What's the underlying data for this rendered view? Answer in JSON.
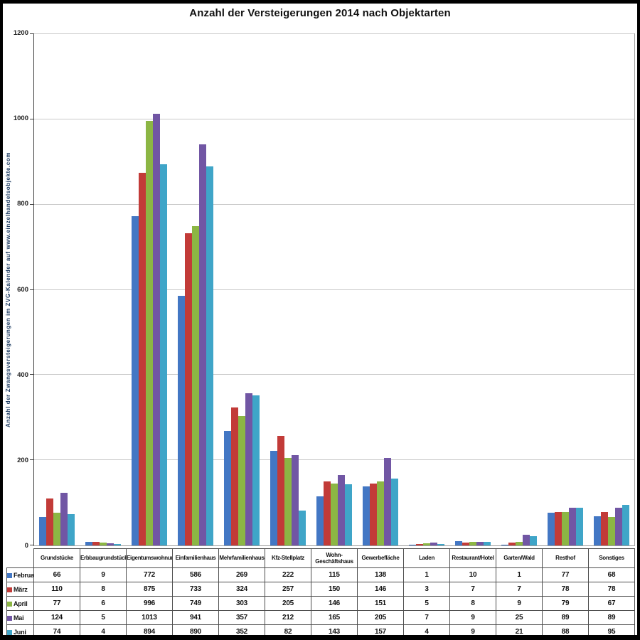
{
  "title": "Anzahl der Versteigerungen 2014 nach Objektarten",
  "chart_data": {
    "type": "bar",
    "title": "Anzahl der Versteigerungen 2014 nach Objektarten",
    "ylabel": "Anzahl der Zwangsversteigerungen im ZVG-Kalender auf www.einzelhandelsobjekte.com",
    "xlabel": "",
    "ylim": [
      0,
      1200
    ],
    "yticks": [
      0,
      200,
      400,
      600,
      800,
      1000,
      1200
    ],
    "grid": true,
    "legend_position": "table-row-headers",
    "categories": [
      "Grundstücke",
      "Erbbaugrundstück",
      "Eigentumswohnung",
      "Einfamilienhaus",
      "Mehrfamilienhaus",
      "Kfz-Stellplatz",
      "Wohn-Geschäftshaus",
      "Gewerbefläche",
      "Laden",
      "Restaurant/Hotel",
      "Garten/Wald",
      "Resthof",
      "Sonstiges"
    ],
    "series": [
      {
        "name": "Februar",
        "color": "#4377C4",
        "values": [
          66,
          9,
          772,
          586,
          269,
          222,
          115,
          138,
          1,
          10,
          1,
          77,
          68
        ]
      },
      {
        "name": "März",
        "color": "#C23B38",
        "values": [
          110,
          8,
          875,
          733,
          324,
          257,
          150,
          146,
          3,
          7,
          7,
          78,
          78
        ]
      },
      {
        "name": "April",
        "color": "#8CB644",
        "values": [
          77,
          6,
          996,
          749,
          303,
          205,
          146,
          151,
          5,
          8,
          9,
          79,
          67
        ]
      },
      {
        "name": "Mai",
        "color": "#7156A4",
        "values": [
          124,
          5,
          1013,
          941,
          357,
          212,
          165,
          205,
          7,
          9,
          25,
          89,
          89
        ]
      },
      {
        "name": "Juni",
        "color": "#3FA5C8",
        "values": [
          74,
          4,
          894,
          890,
          352,
          82,
          143,
          157,
          4,
          9,
          21,
          88,
          95
        ]
      }
    ],
    "colors": {
      "gridline": "#c9c9c9",
      "axis": "#3f3f3f",
      "plot_border": "#9c9c9c",
      "title_text": "#111111",
      "ylabel_text": "#17365D",
      "table_border": "#4d4d4d"
    }
  }
}
